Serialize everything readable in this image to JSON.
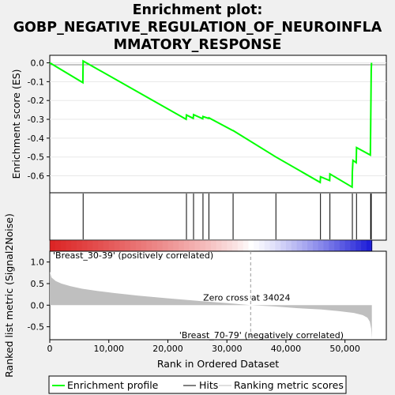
{
  "title_line1": "Enrichment plot:",
  "title_line2": "GOBP_NEGATIVE_REGULATION_OF_NEUROINFLA",
  "title_line3": "MMATORY_RESPONSE",
  "chart_data": {
    "type": "line",
    "es_panel": {
      "ylabel": "Enrichment score (ES)",
      "yticks": [
        "0.0",
        "-0.1",
        "-0.2",
        "-0.3",
        "-0.4",
        "-0.5",
        "-0.6"
      ],
      "ylim": [
        -0.69,
        0.04
      ],
      "series_name": "Enrichment profile",
      "color": "#00ff00",
      "points": [
        [
          0,
          0.0
        ],
        [
          5600,
          -0.105
        ],
        [
          5650,
          0.01
        ],
        [
          23100,
          -0.3
        ],
        [
          23150,
          -0.277
        ],
        [
          24300,
          -0.295
        ],
        [
          24350,
          -0.275
        ],
        [
          25900,
          -0.297
        ],
        [
          25950,
          -0.285
        ],
        [
          26900,
          -0.295
        ],
        [
          26950,
          -0.292
        ],
        [
          31000,
          -0.36
        ],
        [
          31050,
          -0.36
        ],
        [
          38300,
          -0.5
        ],
        [
          45800,
          -0.635
        ],
        [
          45850,
          -0.605
        ],
        [
          47400,
          -0.625
        ],
        [
          47450,
          -0.59
        ],
        [
          51200,
          -0.66
        ],
        [
          51250,
          -0.58
        ],
        [
          51350,
          -0.518
        ],
        [
          51900,
          -0.53
        ],
        [
          51950,
          -0.45
        ],
        [
          54300,
          -0.49
        ],
        [
          54350,
          -0.34
        ],
        [
          54400,
          -0.17
        ],
        [
          54450,
          -0.04
        ],
        [
          54500,
          0.0
        ]
      ]
    },
    "hits_panel": {
      "series_name": "Hits",
      "hit_ranks": [
        5650,
        23150,
        24350,
        25950,
        26950,
        31050,
        38300,
        45850,
        47450,
        51250,
        51950,
        54350,
        54450
      ]
    },
    "heatmap": {
      "left_label": "'Breast_30-39' (positively correlated)",
      "left_color": "#dd2222",
      "right_label": "'Breast_70-79' (negatively correlated)",
      "right_color": "#2222cc"
    },
    "metric_panel": {
      "ylabel": "Ranked list metric (Signal2Noise)",
      "xlabel": "Rank in Ordered Dataset",
      "yticks": [
        "1.0",
        "0.5",
        "0.0",
        "-0.5"
      ],
      "ylim": [
        -0.8,
        1.25
      ],
      "xticks": [
        "0",
        "10,000",
        "20,000",
        "30,000",
        "40,000",
        "50,000"
      ],
      "xlim": [
        0,
        57000
      ],
      "series_name": "Ranking metric scores",
      "zero_cross_label": "Zero cross at 34024",
      "zero_cross": 34024,
      "points": [
        [
          0,
          0.78
        ],
        [
          300,
          0.64
        ],
        [
          1000,
          0.56
        ],
        [
          2000,
          0.5
        ],
        [
          3500,
          0.44
        ],
        [
          5500,
          0.38
        ],
        [
          8000,
          0.33
        ],
        [
          11000,
          0.28
        ],
        [
          15000,
          0.22
        ],
        [
          20000,
          0.16
        ],
        [
          25000,
          0.1
        ],
        [
          30000,
          0.05
        ],
        [
          34024,
          0.0
        ],
        [
          38000,
          -0.03
        ],
        [
          42000,
          -0.07
        ],
        [
          46000,
          -0.1
        ],
        [
          49000,
          -0.14
        ],
        [
          51500,
          -0.18
        ],
        [
          53000,
          -0.23
        ],
        [
          53800,
          -0.29
        ],
        [
          54200,
          -0.38
        ],
        [
          54450,
          -0.55
        ],
        [
          54550,
          -0.78
        ]
      ]
    },
    "legend": [
      "Enrichment profile",
      "Hits",
      "Ranking metric scores"
    ]
  }
}
